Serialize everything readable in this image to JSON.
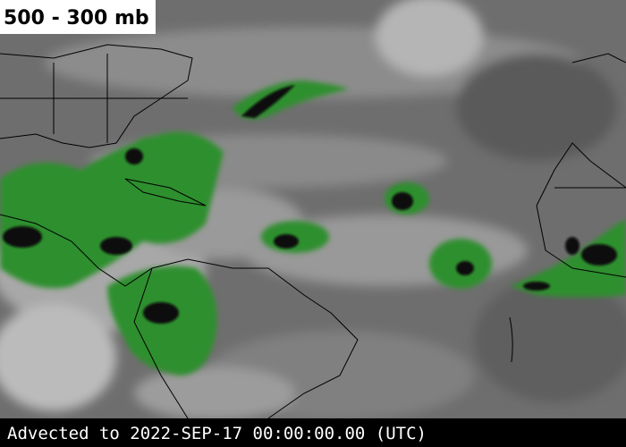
{
  "header": {
    "title": "500 - 300 mb"
  },
  "footer": {
    "timestamp": "Advected to 2022-SEP-17 00:00:00.00 (UTC)"
  }
}
